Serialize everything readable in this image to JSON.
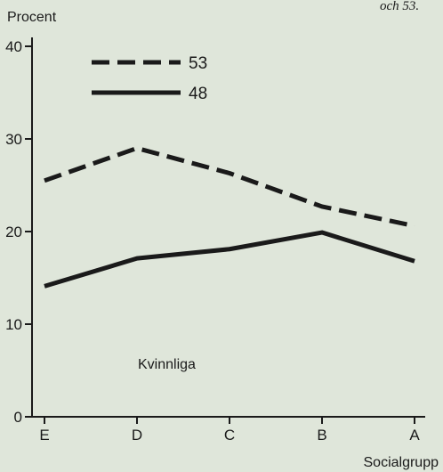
{
  "header_fragment": "och 53.",
  "chart_data": {
    "type": "line",
    "ylabel": "Procent",
    "xlabel": "Socialgrupp",
    "categories": [
      "E",
      "D",
      "C",
      "B",
      "A"
    ],
    "ylim": [
      0,
      40
    ],
    "yticks": [
      0,
      10,
      20,
      30,
      40
    ],
    "grid": false,
    "legend_placement": "top-left",
    "annotation": "Kvinnliga",
    "series": [
      {
        "name": "53",
        "style": "dashed",
        "color": "#1a1a1a",
        "values": [
          25.5,
          29,
          26.3,
          22.7,
          20.6
        ]
      },
      {
        "name": "48",
        "style": "solid",
        "color": "#1a1a1a",
        "values": [
          14.1,
          17.1,
          18.1,
          19.9,
          16.8
        ]
      }
    ]
  }
}
